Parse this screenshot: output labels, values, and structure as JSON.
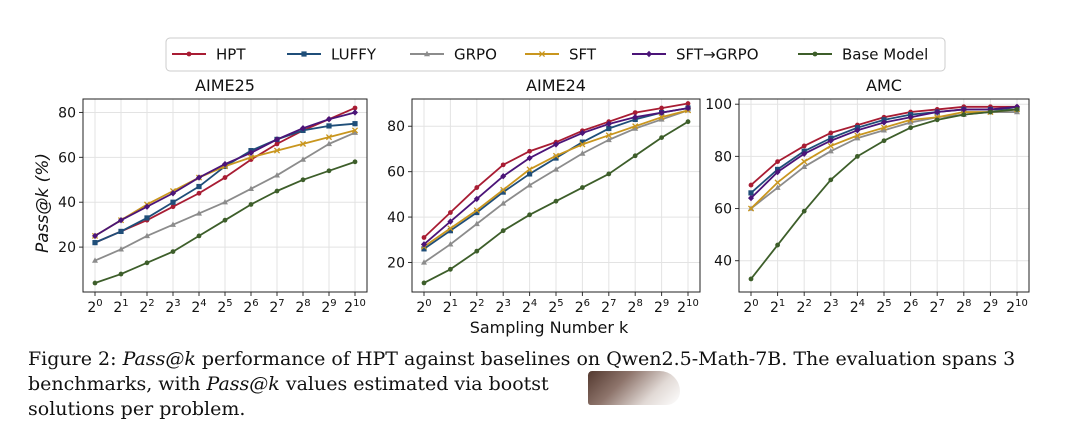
{
  "legend": [
    {
      "name": "HPT",
      "color": "#a81c33",
      "marker": "circle"
    },
    {
      "name": "LUFFY",
      "color": "#1f4e79",
      "marker": "square"
    },
    {
      "name": "GRPO",
      "color": "#8c8c8c",
      "marker": "triangle"
    },
    {
      "name": "SFT",
      "color": "#c9961e",
      "marker": "x"
    },
    {
      "name": "SFT→GRPO",
      "color": "#4b1478",
      "marker": "diamond"
    },
    {
      "name": "Base Model",
      "color": "#3d5e2a",
      "marker": "circle"
    }
  ],
  "shared_xlabel": "Sampling Number k",
  "shared_ylabel": "Pass@k (%)",
  "chart_data": [
    {
      "type": "line",
      "title": "AIME25",
      "x": [
        0,
        1,
        2,
        3,
        4,
        5,
        6,
        7,
        8,
        9,
        10
      ],
      "xtick_labels": [
        "2^0",
        "2^1",
        "2^2",
        "2^3",
        "2^4",
        "2^5",
        "2^6",
        "2^7",
        "2^8",
        "2^9",
        "2^10"
      ],
      "ylim": [
        0,
        86
      ],
      "yticks": [
        20,
        40,
        60,
        80
      ],
      "series": [
        {
          "name": "HPT",
          "values": [
            22,
            27,
            32,
            38,
            44,
            51,
            59,
            66,
            72,
            77,
            82
          ]
        },
        {
          "name": "LUFFY",
          "values": [
            22,
            27,
            33,
            40,
            47,
            56,
            63,
            68,
            72,
            74,
            75
          ]
        },
        {
          "name": "GRPO",
          "values": [
            14,
            19,
            25,
            30,
            35,
            40,
            46,
            52,
            59,
            66,
            71
          ]
        },
        {
          "name": "SFT",
          "values": [
            25,
            32,
            39,
            45,
            51,
            56,
            60,
            63,
            66,
            69,
            72
          ]
        },
        {
          "name": "SFT→GRPO",
          "values": [
            25,
            32,
            38,
            44,
            51,
            57,
            62,
            68,
            73,
            77,
            80
          ]
        },
        {
          "name": "Base Model",
          "values": [
            4,
            8,
            13,
            18,
            25,
            32,
            39,
            45,
            50,
            54,
            58
          ]
        }
      ]
    },
    {
      "type": "line",
      "title": "AIME24",
      "x": [
        0,
        1,
        2,
        3,
        4,
        5,
        6,
        7,
        8,
        9,
        10
      ],
      "xtick_labels": [
        "2^0",
        "2^1",
        "2^2",
        "2^3",
        "2^4",
        "2^5",
        "2^6",
        "2^7",
        "2^8",
        "2^9",
        "2^10"
      ],
      "ylim": [
        7,
        92
      ],
      "yticks": [
        20,
        40,
        60,
        80
      ],
      "series": [
        {
          "name": "HPT",
          "values": [
            31,
            42,
            53,
            63,
            69,
            73,
            78,
            82,
            86,
            88,
            90
          ]
        },
        {
          "name": "LUFFY",
          "values": [
            26,
            34,
            42,
            51,
            59,
            66,
            73,
            79,
            83,
            86,
            88
          ]
        },
        {
          "name": "GRPO",
          "values": [
            20,
            28,
            37,
            46,
            54,
            61,
            68,
            74,
            79,
            83,
            87
          ]
        },
        {
          "name": "SFT",
          "values": [
            27,
            35,
            43,
            52,
            61,
            67,
            72,
            76,
            80,
            84,
            87
          ]
        },
        {
          "name": "SFT→GRPO",
          "values": [
            28,
            38,
            48,
            58,
            66,
            72,
            77,
            81,
            84,
            86,
            88
          ]
        },
        {
          "name": "Base Model",
          "values": [
            11,
            17,
            25,
            34,
            41,
            47,
            53,
            59,
            67,
            75,
            82
          ]
        }
      ]
    },
    {
      "type": "line",
      "title": "AMC",
      "x": [
        0,
        1,
        2,
        3,
        4,
        5,
        6,
        7,
        8,
        9,
        10
      ],
      "xtick_labels": [
        "2^0",
        "2^1",
        "2^2",
        "2^3",
        "2^4",
        "2^5",
        "2^6",
        "2^7",
        "2^8",
        "2^9",
        "2^10"
      ],
      "ylim": [
        28,
        102
      ],
      "yticks": [
        40,
        60,
        80,
        100
      ],
      "series": [
        {
          "name": "HPT",
          "values": [
            69,
            78,
            84,
            89,
            92,
            95,
            97,
            98,
            99,
            99,
            99
          ]
        },
        {
          "name": "LUFFY",
          "values": [
            66,
            75,
            82,
            87,
            91,
            94,
            96,
            97,
            98,
            98,
            98
          ]
        },
        {
          "name": "GRPO",
          "values": [
            60,
            68,
            76,
            82,
            87,
            90,
            93,
            95,
            96,
            97,
            97
          ]
        },
        {
          "name": "SFT",
          "values": [
            60,
            70,
            78,
            84,
            88,
            91,
            94,
            95,
            97,
            97,
            98
          ]
        },
        {
          "name": "SFT→GRPO",
          "values": [
            64,
            74,
            81,
            86,
            90,
            93,
            95,
            97,
            98,
            98,
            99
          ]
        },
        {
          "name": "Base Model",
          "values": [
            33,
            46,
            59,
            71,
            80,
            86,
            91,
            94,
            96,
            97,
            98
          ]
        }
      ]
    }
  ],
  "caption": {
    "lead": "Figure 2: ",
    "italic1": "Pass@k",
    "part1": " performance of HPT against baselines on Qwen2.5-Math-7B. The evaluation spans 3 benchmarks, with ",
    "italic2": "Pass@k",
    "part2": " values estimated via bootst",
    "part3": "solutions per problem."
  }
}
